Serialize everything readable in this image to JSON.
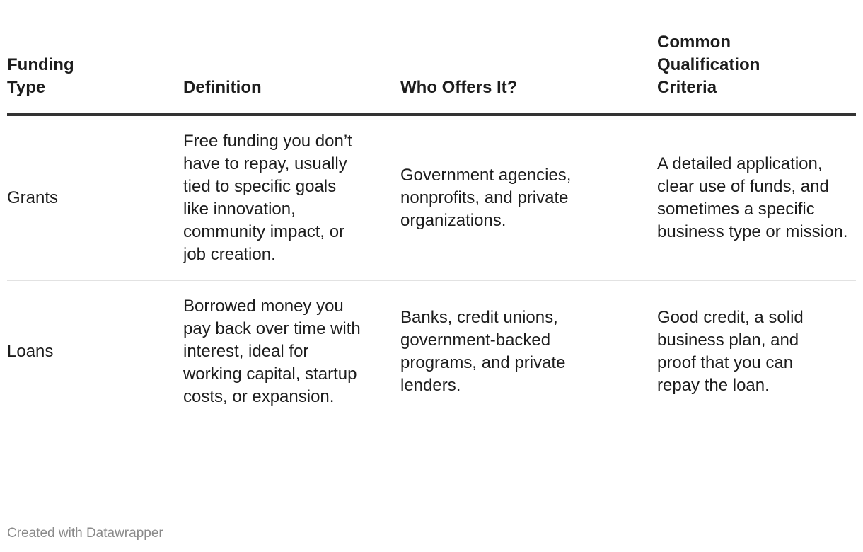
{
  "table": {
    "headers": [
      "Funding Type",
      "Definition",
      "Who Offers It?",
      "Common Qualification Criteria"
    ],
    "rows": [
      [
        "Grants",
        "Free funding you don’t have to repay, usually tied to specific goals like innovation, community impact, or job creation.",
        "Government agencies, nonprofits, and private organizations.",
        "A detailed application, clear use of funds, and sometimes a specific business type or mission."
      ],
      [
        "Loans",
        "Borrowed money you pay back over time with interest, ideal for working capital, startup costs, or expansion.",
        "Banks, credit unions, government-backed programs, and private lenders.",
        "Good credit, a solid business plan, and proof that you can repay the loan."
      ]
    ]
  },
  "footer": {
    "credit": "Created with Datawrapper"
  }
}
